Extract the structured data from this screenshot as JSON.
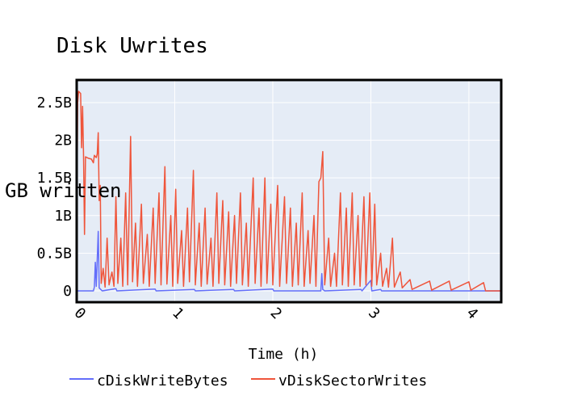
{
  "chart_data": {
    "type": "line",
    "title": "Disk Uwrites",
    "xlabel": "Time (h)",
    "ylabel": "GB written",
    "xlim": [
      0,
      4.33
    ],
    "ylim": [
      -150000000,
      2800000000
    ],
    "grid": true,
    "legend_position": "bottom",
    "x_ticks": [
      {
        "value": 0,
        "label": "0"
      },
      {
        "value": 1,
        "label": "1"
      },
      {
        "value": 2,
        "label": "2"
      },
      {
        "value": 3,
        "label": "3"
      },
      {
        "value": 4,
        "label": "4"
      }
    ],
    "y_ticks": [
      {
        "value": 0,
        "label": "0"
      },
      {
        "value": 500000000,
        "label": "0.5B"
      },
      {
        "value": 1000000000,
        "label": "1B"
      },
      {
        "value": 1500000000,
        "label": "1.5B"
      },
      {
        "value": 2000000000,
        "label": "2B"
      },
      {
        "value": 2500000000,
        "label": "2.5B"
      }
    ],
    "series": [
      {
        "name": "cDiskWriteBytes",
        "color": "#636efa",
        "points": [
          [
            0.0,
            0
          ],
          [
            0.17,
            0
          ],
          [
            0.18,
            50000000
          ],
          [
            0.19,
            380000000
          ],
          [
            0.2,
            60000000
          ],
          [
            0.22,
            790000000
          ],
          [
            0.23,
            40000000
          ],
          [
            0.26,
            0
          ],
          [
            0.4,
            30000000
          ],
          [
            0.41,
            0
          ],
          [
            0.8,
            25000000
          ],
          [
            0.81,
            0
          ],
          [
            1.2,
            20000000
          ],
          [
            1.21,
            0
          ],
          [
            1.6,
            20000000
          ],
          [
            1.61,
            0
          ],
          [
            2.0,
            25000000
          ],
          [
            2.01,
            0
          ],
          [
            2.49,
            0
          ],
          [
            2.5,
            230000000
          ],
          [
            2.51,
            20000000
          ],
          [
            2.53,
            0
          ],
          [
            2.9,
            20000000
          ],
          [
            2.91,
            0
          ],
          [
            3.0,
            140000000
          ],
          [
            3.01,
            0
          ],
          [
            3.1,
            20000000
          ],
          [
            3.11,
            0
          ],
          [
            4.33,
            0
          ]
        ]
      },
      {
        "name": "vDiskSectorWrites",
        "color": "#ef553b",
        "points": [
          [
            0.0,
            700000000
          ],
          [
            0.01,
            2500000000
          ],
          [
            0.02,
            2650000000
          ],
          [
            0.04,
            2620000000
          ],
          [
            0.05,
            1900000000
          ],
          [
            0.06,
            2450000000
          ],
          [
            0.07,
            1800000000
          ],
          [
            0.08,
            750000000
          ],
          [
            0.09,
            1780000000
          ],
          [
            0.12,
            1760000000
          ],
          [
            0.15,
            1750000000
          ],
          [
            0.17,
            1700000000
          ],
          [
            0.18,
            1800000000
          ],
          [
            0.2,
            1770000000
          ],
          [
            0.21,
            1820000000
          ],
          [
            0.22,
            2100000000
          ],
          [
            0.23,
            1200000000
          ],
          [
            0.24,
            1400000000
          ],
          [
            0.25,
            100000000
          ],
          [
            0.27,
            300000000
          ],
          [
            0.29,
            50000000
          ],
          [
            0.31,
            700000000
          ],
          [
            0.33,
            80000000
          ],
          [
            0.36,
            250000000
          ],
          [
            0.38,
            60000000
          ],
          [
            0.4,
            1250000000
          ],
          [
            0.42,
            100000000
          ],
          [
            0.45,
            700000000
          ],
          [
            0.47,
            60000000
          ],
          [
            0.5,
            1300000000
          ],
          [
            0.52,
            80000000
          ],
          [
            0.55,
            2050000000
          ],
          [
            0.57,
            120000000
          ],
          [
            0.6,
            900000000
          ],
          [
            0.62,
            60000000
          ],
          [
            0.66,
            1150000000
          ],
          [
            0.68,
            100000000
          ],
          [
            0.72,
            750000000
          ],
          [
            0.74,
            60000000
          ],
          [
            0.78,
            1100000000
          ],
          [
            0.8,
            100000000
          ],
          [
            0.84,
            1300000000
          ],
          [
            0.86,
            80000000
          ],
          [
            0.9,
            1650000000
          ],
          [
            0.92,
            90000000
          ],
          [
            0.96,
            1000000000
          ],
          [
            0.98,
            60000000
          ],
          [
            1.01,
            1350000000
          ],
          [
            1.03,
            100000000
          ],
          [
            1.07,
            800000000
          ],
          [
            1.09,
            60000000
          ],
          [
            1.13,
            1100000000
          ],
          [
            1.15,
            120000000
          ],
          [
            1.19,
            1600000000
          ],
          [
            1.21,
            80000000
          ],
          [
            1.25,
            900000000
          ],
          [
            1.27,
            60000000
          ],
          [
            1.31,
            1100000000
          ],
          [
            1.33,
            90000000
          ],
          [
            1.37,
            700000000
          ],
          [
            1.39,
            60000000
          ],
          [
            1.43,
            1300000000
          ],
          [
            1.45,
            100000000
          ],
          [
            1.49,
            1200000000
          ],
          [
            1.51,
            80000000
          ],
          [
            1.55,
            1050000000
          ],
          [
            1.57,
            60000000
          ],
          [
            1.61,
            1000000000
          ],
          [
            1.63,
            100000000
          ],
          [
            1.67,
            1300000000
          ],
          [
            1.69,
            80000000
          ],
          [
            1.73,
            900000000
          ],
          [
            1.75,
            60000000
          ],
          [
            1.8,
            1500000000
          ],
          [
            1.82,
            100000000
          ],
          [
            1.86,
            1100000000
          ],
          [
            1.88,
            60000000
          ],
          [
            1.92,
            1500000000
          ],
          [
            1.94,
            100000000
          ],
          [
            1.98,
            1150000000
          ],
          [
            2.0,
            80000000
          ],
          [
            2.05,
            1400000000
          ],
          [
            2.07,
            60000000
          ],
          [
            2.12,
            1250000000
          ],
          [
            2.14,
            100000000
          ],
          [
            2.18,
            1100000000
          ],
          [
            2.2,
            60000000
          ],
          [
            2.24,
            900000000
          ],
          [
            2.26,
            80000000
          ],
          [
            2.3,
            1300000000
          ],
          [
            2.32,
            60000000
          ],
          [
            2.36,
            800000000
          ],
          [
            2.38,
            100000000
          ],
          [
            2.42,
            1000000000
          ],
          [
            2.44,
            60000000
          ],
          [
            2.47,
            1450000000
          ],
          [
            2.49,
            1500000000
          ],
          [
            2.51,
            1850000000
          ],
          [
            2.53,
            80000000
          ],
          [
            2.57,
            700000000
          ],
          [
            2.59,
            60000000
          ],
          [
            2.63,
            500000000
          ],
          [
            2.65,
            60000000
          ],
          [
            2.69,
            1300000000
          ],
          [
            2.71,
            80000000
          ],
          [
            2.75,
            1100000000
          ],
          [
            2.77,
            60000000
          ],
          [
            2.81,
            1300000000
          ],
          [
            2.83,
            80000000
          ],
          [
            2.87,
            1000000000
          ],
          [
            2.89,
            60000000
          ],
          [
            2.93,
            1250000000
          ],
          [
            2.95,
            80000000
          ],
          [
            2.99,
            1300000000
          ],
          [
            3.01,
            60000000
          ],
          [
            3.04,
            1150000000
          ],
          [
            3.06,
            80000000
          ],
          [
            3.1,
            500000000
          ],
          [
            3.12,
            60000000
          ],
          [
            3.16,
            300000000
          ],
          [
            3.18,
            50000000
          ],
          [
            3.22,
            700000000
          ],
          [
            3.24,
            50000000
          ],
          [
            3.3,
            250000000
          ],
          [
            3.32,
            40000000
          ],
          [
            3.4,
            150000000
          ],
          [
            3.42,
            20000000
          ],
          [
            3.6,
            130000000
          ],
          [
            3.62,
            10000000
          ],
          [
            3.8,
            130000000
          ],
          [
            3.82,
            10000000
          ],
          [
            4.0,
            120000000
          ],
          [
            4.02,
            10000000
          ],
          [
            4.15,
            110000000
          ],
          [
            4.17,
            0
          ],
          [
            4.33,
            0
          ]
        ]
      }
    ]
  }
}
